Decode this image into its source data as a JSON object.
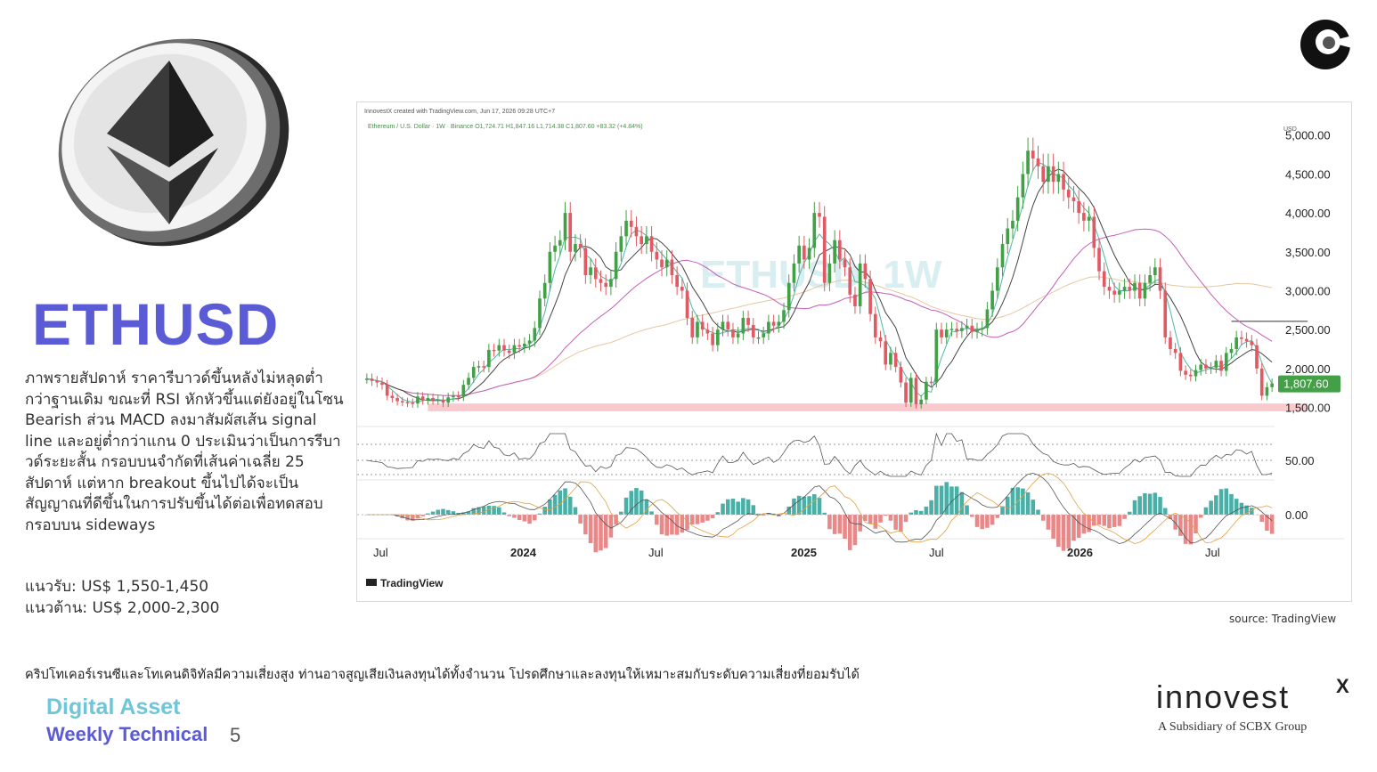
{
  "page": {
    "ticker": "ETHUSD",
    "description": "ภาพรายสัปดาห์ ราคารีบาวด์ขึ้นหลังไม่หลุดต่ำกว่าฐานเดิม ขณะที่ RSI หักหัวขึ้นแต่ยังอยู่ในโซน Bearish ส่วน MACD ลงมาสัมผัสเส้น signal line และอยู่ต่ำกว่าแกน 0 ประเมินว่าเป็นการรีบาวด์ระยะสั้น กรอบบนจำกัดที่เส้นค่าเฉลี่ย 25 สัปดาห์ แต่หาก breakout ขึ้นไปได้จะเป็นสัญญาณที่ดีขึ้นในการปรับขึ้นได้ต่อเพื่อทดสอบกรอบบน sideways",
    "support": "แนวรับ: US$ 1,550-1,450",
    "resistance": "แนวต้าน: US$ 2,000-2,300",
    "source": "source: TradingView",
    "disclaimer": "คริปโทเคอร์เรนซีและโทเคนดิจิทัลมีความเสี่ยงสูง ท่านอาจสูญเสียเงินลงทุนได้ทั้งจำนวน โปรดศึกษาและลงทุนให้เหมาะสมกับระดับความเสี่ยงที่ยอมรับได้",
    "footer_line1": "Digital Asset",
    "footer_line2": "Weekly Technical",
    "page_number": "5",
    "brand": "innovest",
    "brand_x": "X",
    "brand_sub": "A Subsidiary of SCBX Group"
  },
  "colors": {
    "title": "#5b5bd6",
    "footer_teal": "#6ec6d8",
    "up": "#43a047",
    "down": "#e05a63",
    "ma_fast": "#4fb8a6",
    "ma_slow": "#444444",
    "ma_long": "#c35fb8",
    "ma_200": "#e7c7a0",
    "support_band": "#f9c9cd",
    "price_badge": "#43a047"
  },
  "chart_data": {
    "type": "candlestick",
    "header": "InnovestX created with TradingView.com, Jun 17, 2026 09:28 UTC+7",
    "symbol_line": "Ethereum / U.S. Dollar · 1W · Binance  O1,724.71  H1,847.16  L1,714.38  C1,807.60  +83.32 (+4.84%)",
    "watermark": "ETHUSD, 1W",
    "currency": "USD",
    "last_price": "1,807.60",
    "y_ticks": [
      "5,000.00",
      "4,500.00",
      "4,000.00",
      "3,500.00",
      "3,000.00",
      "2,500.00",
      "2,000.00",
      "1,500.00"
    ],
    "y_tick_values": [
      5000,
      4500,
      4000,
      3500,
      3000,
      2500,
      2000,
      1500
    ],
    "ylim": [
      1300,
      5100
    ],
    "x_ticks": [
      "Jul",
      "2024",
      "Jul",
      "2025",
      "Jul",
      "2026",
      "Jul"
    ],
    "rsi_tick": "50.00",
    "macd_tick": "0.00",
    "tradingview_label": "TradingView",
    "support_band": [
      1450,
      1550
    ],
    "resistance_line": 2400,
    "closes": [
      1870,
      1840,
      1820,
      1790,
      1650,
      1620,
      1580,
      1570,
      1560,
      1550,
      1640,
      1590,
      1620,
      1590,
      1600,
      1560,
      1630,
      1650,
      1640,
      1790,
      1880,
      2020,
      2030,
      2020,
      2240,
      2230,
      2300,
      2230,
      2200,
      2300,
      2280,
      2320,
      2360,
      2520,
      2900,
      3100,
      3500,
      3580,
      3650,
      4000,
      3500,
      3600,
      3550,
      3200,
      3300,
      3150,
      3100,
      3050,
      3150,
      3500,
      3700,
      3900,
      3820,
      3700,
      3600,
      3700,
      3500,
      3400,
      3300,
      3400,
      3200,
      3050,
      3000,
      2650,
      2400,
      2600,
      2500,
      2450,
      2300,
      2500,
      2600,
      2500,
      2400,
      2450,
      2650,
      2560,
      2400,
      2400,
      2450,
      2600,
      2550,
      2600,
      2750,
      3100,
      3350,
      3580,
      3400,
      3550,
      4000,
      3950,
      3100,
      3350,
      3650,
      3400,
      3300,
      2950,
      2800,
      3350,
      3150,
      2700,
      2400,
      2350,
      2050,
      2200,
      2020,
      1820,
      1560,
      1880,
      1540,
      1600,
      1830,
      1820,
      2500,
      2400,
      2500,
      2510,
      2480,
      2520,
      2550,
      2470,
      2500,
      2520,
      2760,
      3000,
      3300,
      3600,
      3800,
      3900,
      4200,
      4500,
      4800,
      4700,
      4600,
      4400,
      4600,
      4400,
      4500,
      4300,
      4200,
      4150,
      4000,
      3900,
      3950,
      3550,
      3250,
      3050,
      3000,
      2950,
      3000,
      3050,
      3000,
      3100,
      2900,
      3100,
      3200,
      3300,
      3000,
      2400,
      2250,
      2200,
      1970,
      1920,
      1900,
      1980,
      2050,
      2000,
      2010,
      2100,
      1970,
      2200,
      2250,
      2400,
      2380,
      2350,
      2300,
      2000,
      1650,
      1760,
      1807.6
    ]
  }
}
